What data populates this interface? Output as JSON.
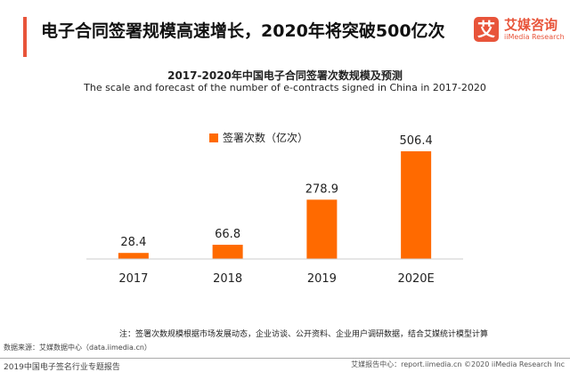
{
  "header": {
    "title": "电子合同签署规模高速增长，2020年将突破500亿次",
    "logo_mark": "艾",
    "logo_cn": "艾媒咨询",
    "logo_en": "iiMedia Research"
  },
  "chart_data": {
    "type": "bar",
    "title": "2017-2020年中国电子合同签署次数规模及预测",
    "subtitle": "The scale and forecast of the number of e-contracts signed in China in 2017-2020",
    "categories": [
      "2017",
      "2018",
      "2019",
      "2020E"
    ],
    "series": [
      {
        "name": "签署次数（亿次）",
        "values": [
          28.4,
          66.8,
          278.9,
          506.4
        ]
      }
    ],
    "ylim": [
      0,
      506.4
    ],
    "legend": "top-center",
    "grid": false,
    "color": "#ff6a00"
  },
  "footer": {
    "note": "注：签署次数规模根据市场发展动态，企业访谈、公开资料、企业用户调研数据，结合艾媒统计模型计算",
    "source": "数据来源：艾媒数据中心（data.iimedia.cn）",
    "report": "2019中国电子签名行业专题报告",
    "credit": "艾媒报告中心：report.iimedia.cn  ©2020  iiMedia Research Inc"
  }
}
